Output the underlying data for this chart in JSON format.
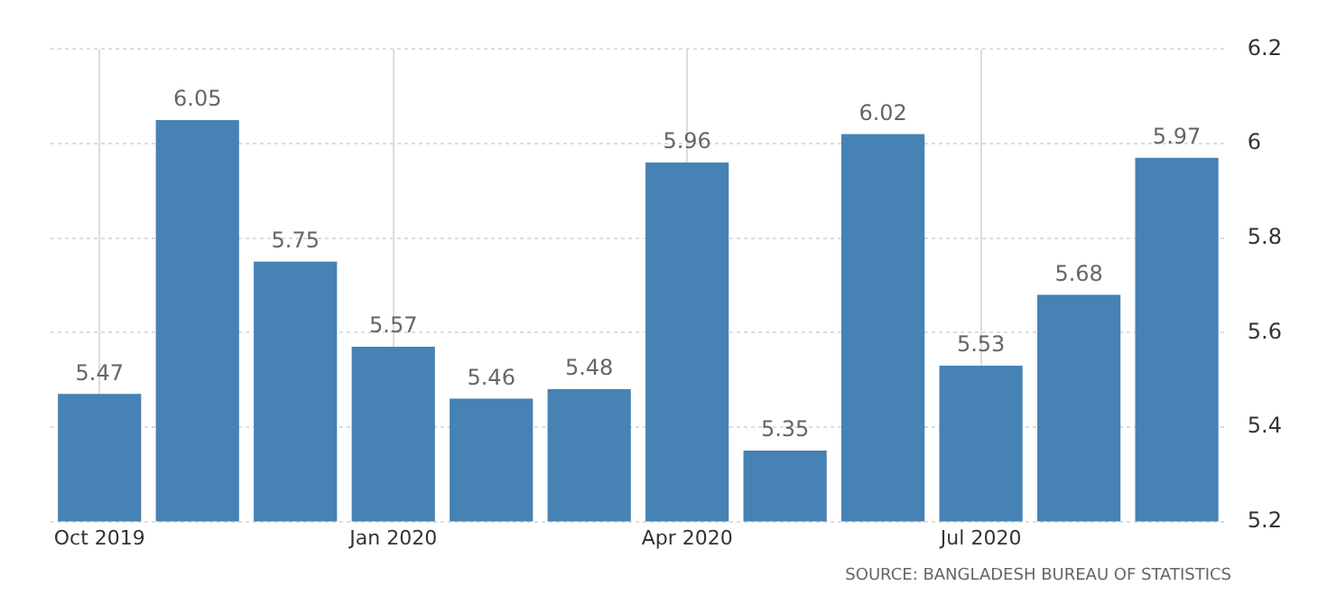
{
  "chart_data": {
    "type": "bar",
    "categories": [
      "Oct 2019",
      null,
      null,
      "Jan 2020",
      null,
      null,
      "Apr 2020",
      null,
      null,
      "Jul 2020",
      null,
      null
    ],
    "values": [
      5.47,
      6.05,
      5.75,
      5.57,
      5.46,
      5.48,
      5.96,
      5.35,
      6.02,
      5.53,
      5.68,
      5.97
    ],
    "color": "#4682b4",
    "ylim": [
      5.2,
      6.2
    ],
    "yticks": [
      5.2,
      5.4,
      5.6,
      5.8,
      6,
      6.2
    ],
    "grid": true,
    "data_labels": true,
    "annotations": [
      "SOURCE: BANGLADESH BUREAU OF STATISTICS"
    ]
  }
}
